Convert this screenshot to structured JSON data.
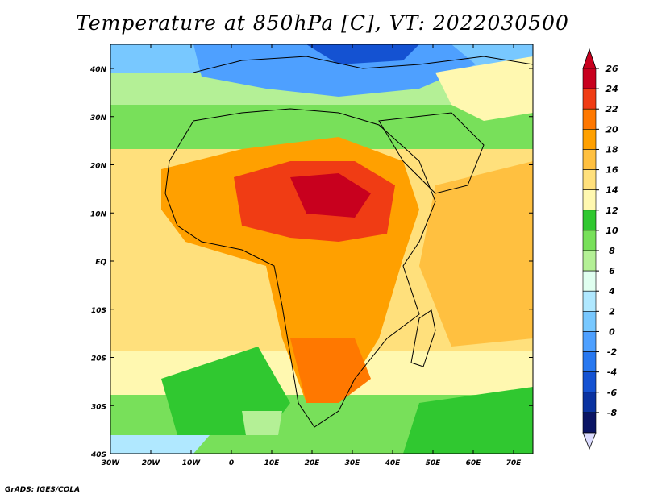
{
  "title": "Temperature at 850hPa [C], VT: 2022030500",
  "footer": "GrADS: IGES/COLA",
  "lat_labels": [
    "40N",
    "30N",
    "20N",
    "10N",
    "EQ",
    "10S",
    "20S",
    "30S",
    "40S"
  ],
  "lon_labels": [
    "30W",
    "20W",
    "10W",
    "0",
    "10E",
    "20E",
    "30E",
    "40E",
    "50E",
    "60E",
    "70E"
  ],
  "colorbar": {
    "labels": [
      "26",
      "24",
      "22",
      "20",
      "18",
      "16",
      "14",
      "12",
      "10",
      "8",
      "6",
      "4",
      "2",
      "0",
      "-2",
      "-4",
      "-6",
      "-8"
    ],
    "colors": [
      "#c8001e",
      "#f03c14",
      "#ff7800",
      "#ffa000",
      "#ffc040",
      "#ffe07c",
      "#fff8b0",
      "#30c830",
      "#78e05a",
      "#b4f096",
      "#e0fff0",
      "#b0e8ff",
      "#78c8ff",
      "#4ea0ff",
      "#2878f0",
      "#1452d2",
      "#0a32a0",
      "#0a1464"
    ],
    "upper_arrow_color": "#c8001e",
    "lower_arrow_color": "#dcdcff"
  }
}
